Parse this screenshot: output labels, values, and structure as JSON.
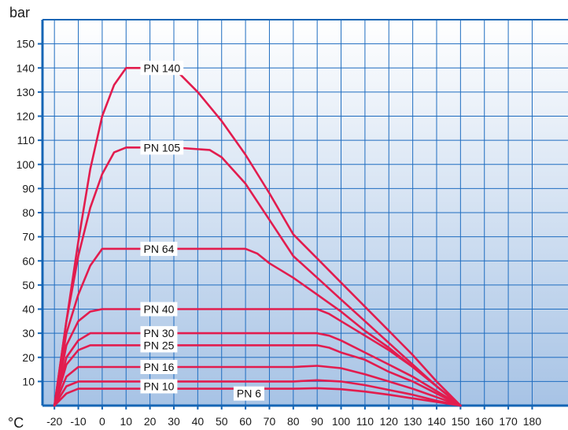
{
  "chart_data": {
    "type": "line",
    "ylabel": "bar",
    "xlabel": "°C",
    "xlim": [
      -25,
      195
    ],
    "ylim": [
      0,
      160
    ],
    "x_ticks": [
      -20,
      -10,
      0,
      10,
      20,
      30,
      40,
      50,
      60,
      70,
      80,
      90,
      100,
      110,
      120,
      130,
      140,
      150,
      160,
      170,
      180
    ],
    "y_ticks": [
      10,
      20,
      30,
      40,
      50,
      60,
      70,
      80,
      90,
      100,
      110,
      120,
      130,
      140,
      150
    ],
    "grid": true,
    "series": [
      {
        "name": "PN 140",
        "points": [
          [
            -20,
            0
          ],
          [
            -15,
            35
          ],
          [
            -10,
            68
          ],
          [
            -5,
            98
          ],
          [
            0,
            120
          ],
          [
            5,
            133
          ],
          [
            10,
            140
          ],
          [
            30,
            140
          ],
          [
            40,
            130
          ],
          [
            50,
            118
          ],
          [
            60,
            104
          ],
          [
            70,
            88
          ],
          [
            80,
            71
          ],
          [
            90,
            61
          ],
          [
            100,
            51
          ],
          [
            110,
            41
          ],
          [
            120,
            31
          ],
          [
            130,
            21
          ],
          [
            140,
            10
          ],
          [
            150,
            0
          ]
        ],
        "label_at": [
          16,
          140
        ]
      },
      {
        "name": "PN 105",
        "points": [
          [
            -20,
            0
          ],
          [
            -15,
            35
          ],
          [
            -10,
            62
          ],
          [
            -5,
            82
          ],
          [
            0,
            96
          ],
          [
            5,
            105
          ],
          [
            10,
            107
          ],
          [
            30,
            107
          ],
          [
            45,
            106
          ],
          [
            50,
            103
          ],
          [
            60,
            92
          ],
          [
            70,
            77
          ],
          [
            80,
            62
          ],
          [
            90,
            53
          ],
          [
            100,
            44
          ],
          [
            110,
            35
          ],
          [
            120,
            26
          ],
          [
            130,
            17
          ],
          [
            140,
            8
          ],
          [
            150,
            0
          ]
        ],
        "label_at": [
          16,
          107
        ]
      },
      {
        "name": "PN 64",
        "points": [
          [
            -20,
            0
          ],
          [
            -15,
            30
          ],
          [
            -10,
            46
          ],
          [
            -5,
            58
          ],
          [
            0,
            65
          ],
          [
            10,
            65
          ],
          [
            30,
            65
          ],
          [
            60,
            65
          ],
          [
            65,
            63
          ],
          [
            70,
            59
          ],
          [
            80,
            53
          ],
          [
            90,
            46
          ],
          [
            100,
            39
          ],
          [
            110,
            31
          ],
          [
            120,
            24
          ],
          [
            130,
            16
          ],
          [
            140,
            8
          ],
          [
            150,
            0
          ]
        ],
        "label_at": [
          16,
          65
        ]
      },
      {
        "name": "PN 40",
        "points": [
          [
            -20,
            0
          ],
          [
            -15,
            25
          ],
          [
            -10,
            35
          ],
          [
            -5,
            39
          ],
          [
            0,
            40
          ],
          [
            30,
            40
          ],
          [
            60,
            40
          ],
          [
            90,
            40
          ],
          [
            95,
            38
          ],
          [
            100,
            35
          ],
          [
            110,
            29
          ],
          [
            120,
            23
          ],
          [
            130,
            16
          ],
          [
            140,
            8
          ],
          [
            150,
            0
          ]
        ],
        "label_at": [
          16,
          40
        ]
      },
      {
        "name": "PN 30",
        "points": [
          [
            -20,
            0
          ],
          [
            -15,
            20
          ],
          [
            -10,
            27
          ],
          [
            -5,
            30
          ],
          [
            0,
            30
          ],
          [
            30,
            30
          ],
          [
            60,
            30
          ],
          [
            90,
            30
          ],
          [
            95,
            29
          ],
          [
            100,
            27
          ],
          [
            110,
            22
          ],
          [
            120,
            17
          ],
          [
            130,
            12
          ],
          [
            140,
            6
          ],
          [
            150,
            0
          ]
        ],
        "label_at": [
          16,
          30
        ]
      },
      {
        "name": "PN 25",
        "points": [
          [
            -20,
            0
          ],
          [
            -15,
            17
          ],
          [
            -10,
            23
          ],
          [
            -5,
            25
          ],
          [
            0,
            25
          ],
          [
            30,
            25
          ],
          [
            60,
            25
          ],
          [
            90,
            25
          ],
          [
            95,
            24
          ],
          [
            100,
            22
          ],
          [
            110,
            19
          ],
          [
            120,
            14
          ],
          [
            130,
            10
          ],
          [
            140,
            5
          ],
          [
            150,
            0
          ]
        ],
        "label_at": [
          16,
          25
        ]
      },
      {
        "name": "PN 16",
        "points": [
          [
            -20,
            0
          ],
          [
            -15,
            12
          ],
          [
            -10,
            16
          ],
          [
            0,
            16
          ],
          [
            30,
            16
          ],
          [
            60,
            16
          ],
          [
            80,
            16
          ],
          [
            90,
            16.5
          ],
          [
            100,
            15.5
          ],
          [
            110,
            13
          ],
          [
            120,
            10
          ],
          [
            130,
            7
          ],
          [
            140,
            3.5
          ],
          [
            150,
            0
          ]
        ],
        "label_at": [
          16,
          16
        ]
      },
      {
        "name": "PN 10",
        "points": [
          [
            -20,
            0
          ],
          [
            -15,
            8
          ],
          [
            -10,
            10
          ],
          [
            0,
            10
          ],
          [
            30,
            10
          ],
          [
            60,
            10
          ],
          [
            80,
            10
          ],
          [
            90,
            10.5
          ],
          [
            100,
            10
          ],
          [
            110,
            8.5
          ],
          [
            120,
            6.5
          ],
          [
            130,
            4.5
          ],
          [
            140,
            2
          ],
          [
            150,
            0
          ]
        ],
        "label_at": [
          16,
          8
        ]
      },
      {
        "name": "PN 6",
        "points": [
          [
            -20,
            0
          ],
          [
            -15,
            5
          ],
          [
            -10,
            7
          ],
          [
            0,
            7
          ],
          [
            30,
            7
          ],
          [
            60,
            7
          ],
          [
            80,
            7
          ],
          [
            90,
            7.2
          ],
          [
            100,
            6.8
          ],
          [
            110,
            5.8
          ],
          [
            120,
            4.5
          ],
          [
            130,
            3
          ],
          [
            140,
            1.5
          ],
          [
            150,
            0
          ]
        ],
        "label_at": [
          55,
          5
        ]
      }
    ],
    "colors": {
      "line": "#e21c4e",
      "axis": "#1565b5",
      "grid": "#1f6dc0",
      "plot_top": "#ffffff",
      "plot_bottom": "#a7c3e5"
    }
  }
}
